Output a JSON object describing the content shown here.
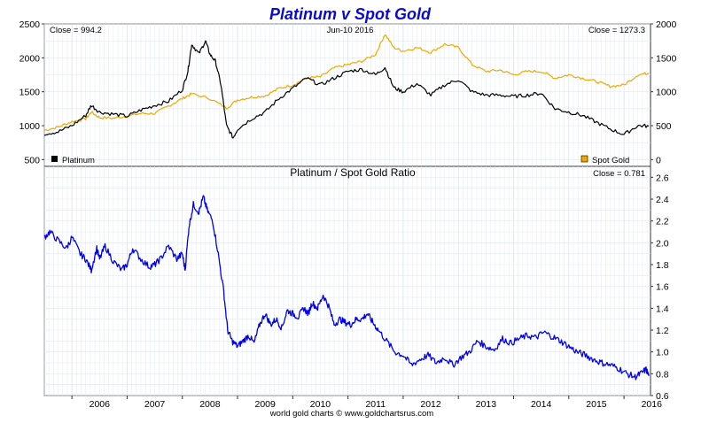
{
  "chart_data": [
    {
      "type": "line",
      "title": "Platinum v Spot Gold",
      "date": "Jun-10  2016",
      "close_left": "Close = 994.2",
      "close_right": "Close = 1273.3",
      "left_axis": {
        "ylim": [
          400,
          2500
        ],
        "ticks": [
          500,
          1000,
          1500,
          2000,
          2500
        ]
      },
      "right_axis": {
        "ylim": [
          -100,
          2000
        ],
        "ticks": [
          0,
          500,
          1000,
          1500,
          2000
        ]
      },
      "grid": true,
      "legend": [
        {
          "name": "Platinum",
          "color": "#000000",
          "placement": "bottom-left"
        },
        {
          "name": "Spot Gold",
          "color": "#f0a800",
          "placement": "bottom-right"
        }
      ],
      "series": [
        {
          "name": "Platinum",
          "axis": "left",
          "color": "#000000",
          "x": [
            2005.5,
            2005.75,
            2006.0,
            2006.25,
            2006.35,
            2006.5,
            2006.75,
            2007.0,
            2007.25,
            2007.5,
            2007.75,
            2008.0,
            2008.1,
            2008.17,
            2008.3,
            2008.42,
            2008.5,
            2008.6,
            2008.7,
            2008.8,
            2008.92,
            2009.0,
            2009.25,
            2009.5,
            2009.75,
            2010.0,
            2010.25,
            2010.5,
            2010.75,
            2011.0,
            2011.25,
            2011.5,
            2011.67,
            2011.83,
            2012.0,
            2012.25,
            2012.5,
            2012.75,
            2013.0,
            2013.25,
            2013.5,
            2013.75,
            2014.0,
            2014.25,
            2014.5,
            2014.75,
            2015.0,
            2015.25,
            2015.5,
            2015.75,
            2016.0,
            2016.25,
            2016.45
          ],
          "values": [
            880,
            910,
            1000,
            1150,
            1300,
            1200,
            1170,
            1140,
            1230,
            1300,
            1360,
            1530,
            1800,
            2200,
            2060,
            2250,
            2050,
            1950,
            1600,
            1000,
            820,
            950,
            1100,
            1200,
            1400,
            1550,
            1700,
            1600,
            1700,
            1800,
            1830,
            1750,
            1860,
            1560,
            1500,
            1620,
            1450,
            1600,
            1680,
            1500,
            1450,
            1450,
            1430,
            1450,
            1480,
            1250,
            1200,
            1150,
            1050,
            950,
            870,
            1000,
            994
          ]
        },
        {
          "name": "Spot Gold",
          "axis": "right",
          "color": "#f0a800",
          "x": [
            2005.5,
            2005.75,
            2006.0,
            2006.25,
            2006.35,
            2006.5,
            2006.75,
            2007.0,
            2007.25,
            2007.5,
            2007.75,
            2008.0,
            2008.17,
            2008.5,
            2008.8,
            2009.0,
            2009.25,
            2009.5,
            2009.75,
            2010.0,
            2010.25,
            2010.5,
            2010.75,
            2011.0,
            2011.25,
            2011.5,
            2011.67,
            2011.83,
            2012.0,
            2012.25,
            2012.5,
            2012.75,
            2013.0,
            2013.25,
            2013.5,
            2013.75,
            2014.0,
            2014.25,
            2014.5,
            2014.75,
            2015.0,
            2015.25,
            2015.5,
            2015.75,
            2016.0,
            2016.25,
            2016.45
          ],
          "values": [
            430,
            480,
            560,
            600,
            700,
            620,
            610,
            640,
            680,
            680,
            790,
            900,
            970,
            900,
            760,
            880,
            920,
            940,
            1050,
            1100,
            1200,
            1220,
            1350,
            1400,
            1450,
            1550,
            1850,
            1650,
            1600,
            1650,
            1580,
            1700,
            1650,
            1400,
            1300,
            1320,
            1250,
            1300,
            1300,
            1200,
            1250,
            1200,
            1150,
            1080,
            1100,
            1250,
            1273
          ]
        }
      ]
    },
    {
      "type": "line",
      "title": "Platinum  /  Spot Gold Ratio",
      "close_right": "Close = 0.781",
      "ylim": [
        0.6,
        2.7
      ],
      "y_ticks": [
        "0.6",
        "0.8",
        "1.0",
        "1.2",
        "1.4",
        "1.6",
        "1.8",
        "2.0",
        "2.2",
        "2.4",
        "2.6"
      ],
      "x_ticks": [
        "2006",
        "2007",
        "2008",
        "2009",
        "2010",
        "2011",
        "2012",
        "2013",
        "2014",
        "2015",
        "2016"
      ],
      "grid": true,
      "series": [
        {
          "color": "#0000ee",
          "x": [
            2005.5,
            2005.6,
            2005.75,
            2005.9,
            2006.0,
            2006.15,
            2006.25,
            2006.35,
            2006.45,
            2006.5,
            2006.6,
            2006.75,
            2006.9,
            2007.0,
            2007.1,
            2007.25,
            2007.4,
            2007.5,
            2007.6,
            2007.75,
            2007.9,
            2008.0,
            2008.05,
            2008.12,
            2008.2,
            2008.3,
            2008.38,
            2008.45,
            2008.55,
            2008.65,
            2008.75,
            2008.82,
            2008.9,
            2009.0,
            2009.1,
            2009.2,
            2009.3,
            2009.4,
            2009.5,
            2009.6,
            2009.7,
            2009.8,
            2009.9,
            2010.0,
            2010.1,
            2010.2,
            2010.28,
            2010.35,
            2010.45,
            2010.55,
            2010.65,
            2010.75,
            2010.85,
            2010.95,
            2011.05,
            2011.15,
            2011.25,
            2011.35,
            2011.45,
            2011.55,
            2011.7,
            2011.85,
            2012.0,
            2012.15,
            2012.3,
            2012.45,
            2012.6,
            2012.75,
            2012.9,
            2013.05,
            2013.2,
            2013.35,
            2013.5,
            2013.65,
            2013.8,
            2013.95,
            2014.1,
            2014.25,
            2014.4,
            2014.55,
            2014.7,
            2014.85,
            2015.0,
            2015.15,
            2015.3,
            2015.45,
            2015.6,
            2015.75,
            2015.9,
            2016.05,
            2016.2,
            2016.3,
            2016.4,
            2016.45
          ],
          "values": [
            2.05,
            2.1,
            2.02,
            1.95,
            2.05,
            1.9,
            1.85,
            1.75,
            1.95,
            1.85,
            1.97,
            1.83,
            1.75,
            1.8,
            1.95,
            1.85,
            1.78,
            1.8,
            1.85,
            1.97,
            1.85,
            1.9,
            1.75,
            2.15,
            2.35,
            2.28,
            2.42,
            2.3,
            2.2,
            1.9,
            1.55,
            1.2,
            1.1,
            1.05,
            1.1,
            1.15,
            1.08,
            1.25,
            1.35,
            1.25,
            1.3,
            1.22,
            1.38,
            1.35,
            1.32,
            1.4,
            1.35,
            1.45,
            1.4,
            1.52,
            1.42,
            1.25,
            1.3,
            1.27,
            1.25,
            1.3,
            1.3,
            1.35,
            1.27,
            1.2,
            1.1,
            1.0,
            0.97,
            0.88,
            0.93,
            0.97,
            0.9,
            0.95,
            0.88,
            0.95,
            1.0,
            1.1,
            1.05,
            1.02,
            1.12,
            1.08,
            1.12,
            1.15,
            1.13,
            1.18,
            1.14,
            1.1,
            1.05,
            1.0,
            0.97,
            0.93,
            0.9,
            0.88,
            0.85,
            0.8,
            0.77,
            0.8,
            0.84,
            0.78
          ]
        }
      ]
    }
  ],
  "footer": "world gold charts © www.goldchartsrus.com"
}
